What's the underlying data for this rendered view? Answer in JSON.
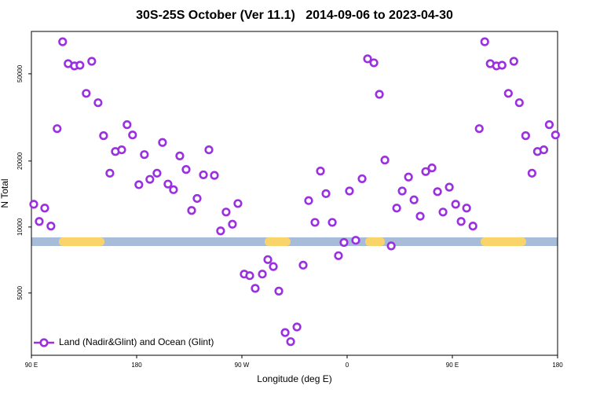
{
  "chart_data": {
    "type": "scatter",
    "title": "30S-25S October (Ver 11.1)   2014-09-06 to 2023-04-30",
    "x_label": "Longitude (deg E)",
    "y_label": "N Total",
    "log_y": true,
    "legend": "bottom-left",
    "xlim": [
      90,
      540
    ],
    "xticks": [
      {
        "value": 90,
        "label": "90 E"
      },
      180,
      {
        "value": 270,
        "label": "90 W"
      },
      {
        "value": 360,
        "label": "0"
      },
      {
        "value": 450,
        "label": "90 E"
      },
      {
        "value": 540,
        "label": "180"
      }
    ],
    "ylim": [
      2600,
      78000
    ],
    "yticks": [
      5000,
      10000,
      20000,
      50000
    ],
    "series": [
      {
        "name": "Land (Nadir&Glint) and Ocean (Glint)",
        "color": "#9b30e0",
        "x": [
          92.0,
          96.7,
          101.4,
          106.7,
          112.0,
          116.7,
          121.4,
          126.8,
          131.5,
          136.9,
          141.6,
          147.0,
          151.7,
          157.1,
          161.8,
          167.2,
          171.8,
          176.5,
          181.9,
          186.6,
          191.3,
          197.4,
          202.1,
          206.8,
          211.5,
          216.9,
          222.3,
          227.0,
          231.7,
          237.1,
          241.8,
          246.5,
          251.8,
          256.5,
          261.9,
          266.6,
          272.0,
          276.7,
          281.4,
          287.5,
          292.2,
          296.9,
          301.6,
          307.0,
          311.7,
          317.1,
          322.4,
          327.1,
          332.5,
          337.2,
          341.9,
          347.3,
          352.6,
          357.3,
          362.0,
          367.4,
          372.8,
          377.5,
          382.9,
          387.6,
          392.3,
          397.7,
          402.4,
          407.1,
          412.5,
          417.2,
          422.5,
          427.2,
          432.6,
          437.3,
          442.0,
          447.4,
          452.8,
          457.5,
          462.2,
          467.6,
          473.0,
          477.7,
          482.4,
          487.8,
          492.5,
          497.9,
          502.6,
          507.3,
          512.7,
          518.1,
          522.8,
          528.2,
          532.9,
          538.2
        ],
        "values": [
          12700,
          10600,
          12200,
          10100,
          28100,
          70000,
          55600,
          54300,
          54700,
          40700,
          57000,
          36900,
          26100,
          17600,
          22100,
          22500,
          29300,
          26300,
          15600,
          21400,
          16500,
          17600,
          24300,
          15700,
          14800,
          21100,
          18300,
          11900,
          13500,
          17300,
          22500,
          17200,
          9600,
          11700,
          10300,
          12800,
          6100,
          6000,
          5250,
          6100,
          7100,
          6600,
          5100,
          3300,
          3000,
          3500,
          6700,
          13200,
          10500,
          18000,
          14200,
          10500,
          7400,
          8500,
          14600,
          8700,
          16600,
          58500,
          56100,
          40300,
          20200,
          8200,
          12200,
          14600,
          16900,
          13300,
          11200,
          17900,
          18600,
          14500,
          11700,
          15200,
          12700,
          10600,
          12200,
          10100,
          28100,
          70000,
          55600,
          54300,
          54700,
          40700,
          57000,
          36900,
          26100,
          17600,
          22100,
          22500,
          29300,
          26300
        ]
      }
    ]
  }
}
